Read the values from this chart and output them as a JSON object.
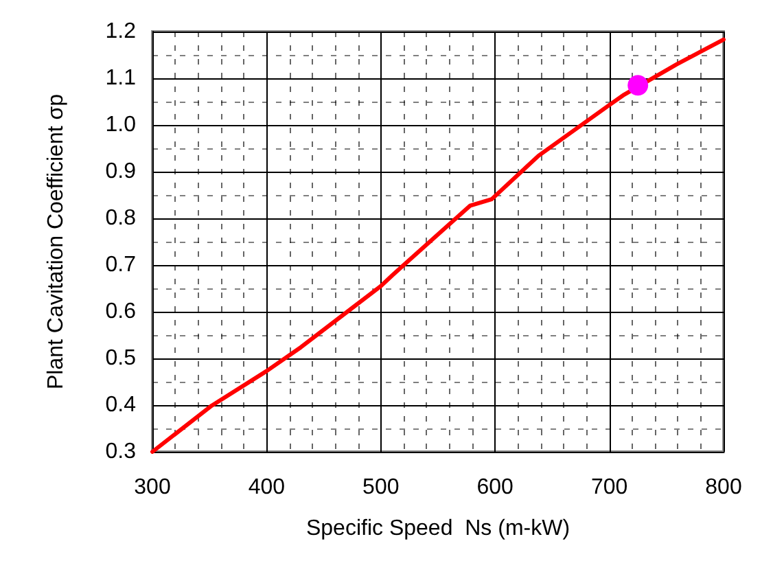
{
  "chart_data": {
    "type": "line",
    "xlabel": "Specific Speed  Ns (m-kW)",
    "ylabel": "Plant Cavitation Coefficient σp",
    "xlim": [
      300,
      800
    ],
    "xticks": [
      300,
      400,
      500,
      600,
      700,
      800
    ],
    "ylim": [
      0.3,
      1.2
    ],
    "yticks": [
      0.3,
      0.4,
      0.5,
      0.6,
      0.7,
      0.8,
      0.9,
      {
        "value": 1,
        "label": "1.0"
      },
      1.1,
      1.2
    ],
    "grid": true,
    "series": [
      {
        "color": "#ff0000",
        "marker": "none",
        "x": [
          300,
          352,
          400,
          430,
          500,
          510,
          520,
          578,
          597,
          638,
          699,
          713,
          759,
          800
        ],
        "values": [
          0.3,
          0.399,
          0.473,
          0.524,
          0.655,
          0.678,
          0.7,
          0.827,
          0.841,
          0.934,
          1.041,
          1.065,
          1.13,
          1.183
        ]
      },
      {
        "type": "scatter",
        "color": "#ff00ff",
        "marker": "circle",
        "x": [
          725
        ],
        "values": [
          1.085
        ]
      }
    ]
  }
}
